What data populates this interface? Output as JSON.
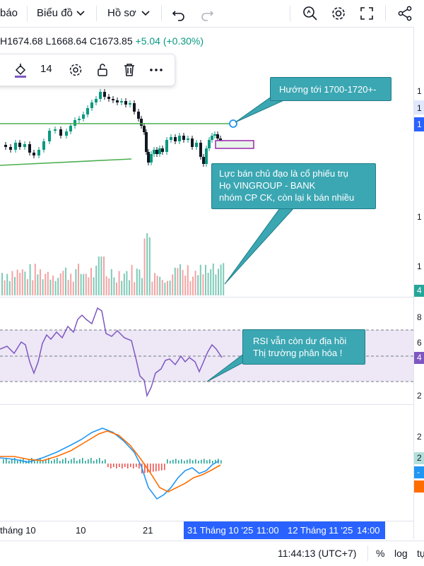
{
  "toolbar": {
    "item_0": "báo",
    "item_chart": "Biểu đồ",
    "item_profile": "Hồ sơ"
  },
  "ohlc": {
    "high": "H1674.68",
    "low": "L1668.64",
    "close": "C1673.85",
    "change": "+5.04 (+0.30%)"
  },
  "drawing_toolbar": {
    "line_width": "14"
  },
  "annotations": {
    "target": "Hướng tới 1700-1720+-",
    "selling": [
      "Lực bán chủ đạo là cổ phiếu trụ",
      "Họ VINGROUP - BANK",
      "nhóm CP CK, còn lại k bán nhiều"
    ],
    "rsi": [
      "RSI vẫn còn dư địa hồi",
      "Thị trường phân hóa !"
    ]
  },
  "time_axis": {
    "labels": [
      "tháng 10",
      "10",
      "21"
    ],
    "highlight": [
      "31 Tháng 10 '25",
      "11:00",
      "12 Tháng 11 '25",
      "14:00"
    ]
  },
  "bottom_bar": {
    "time": "11:44:13 (UTC+7)",
    "percent": "%",
    "log": "log",
    "auto": "tự"
  },
  "right_axis": {
    "labels": [
      "1",
      "1",
      "1",
      "1",
      "1",
      "4",
      "8",
      "6",
      "4",
      "2",
      "2",
      "2",
      "-"
    ]
  },
  "chart_data": [
    {
      "type": "candlestick",
      "title": "",
      "last": {
        "high": 1674.68,
        "low": 1668.64,
        "close": 1673.85,
        "change": 5.04,
        "change_pct": 0.3
      },
      "resistance_line": {
        "approx_value": 1674,
        "color": "#4caf50"
      },
      "support_trendline": {
        "color": "#4caf50"
      },
      "colors": {
        "up": "#089981",
        "down": "#131722"
      }
    },
    {
      "type": "bar",
      "title": "Volume",
      "colors": {
        "up": "#7ecbb8",
        "down": "#f5a3a3"
      }
    },
    {
      "type": "line",
      "title": "RSI",
      "bands": [
        70,
        30
      ],
      "middle": 50,
      "colors": {
        "line": "#7e57c2",
        "band_fill": "#ede7f6"
      }
    },
    {
      "type": "line",
      "title": "MACD",
      "colors": {
        "macd": "#2196f3",
        "signal": "#ff6d00",
        "hist_up": "#26a69a",
        "hist_down": "#ef5350"
      }
    }
  ]
}
